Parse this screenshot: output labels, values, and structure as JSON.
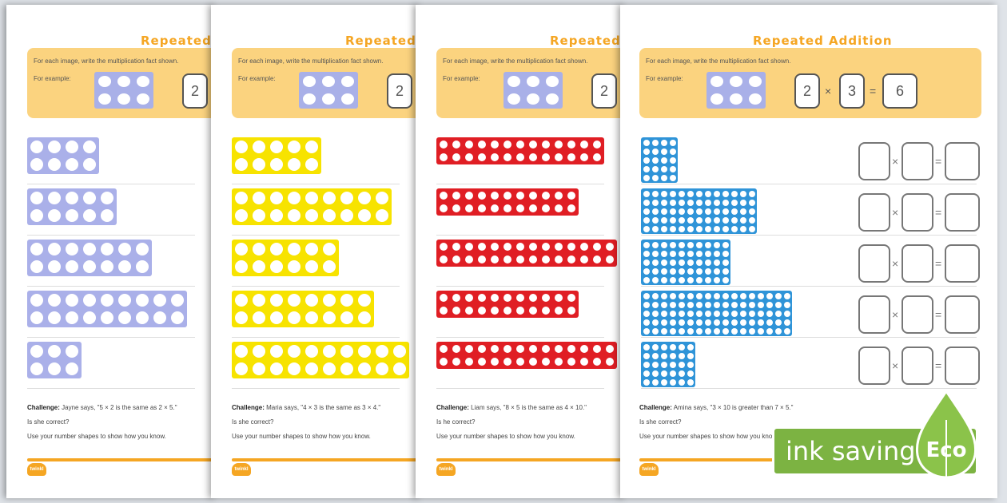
{
  "sheets": [
    {
      "title": "Repeated A",
      "instruction": "For each image, write the multiplication fact shown.",
      "example_label": "For example:",
      "example_values": [
        "2"
      ],
      "color": "#aab0e9",
      "challenge_label": "Challenge:",
      "challenge_text": "Jayne says, \"5 × 2 is the same as 2 × 5.\"",
      "question": "Is she correct?",
      "prompt": "Use your number shapes to show how you know."
    },
    {
      "title": "Repeated A",
      "instruction": "For each image, write the multiplication fact shown.",
      "example_label": "For example:",
      "example_values": [
        "2"
      ],
      "color": "#f7e300",
      "challenge_label": "Challenge:",
      "challenge_text": "Maria says, \"4 × 3 is the same as 3 × 4.\"",
      "question": "Is she correct?",
      "prompt": "Use your number shapes to show how you know."
    },
    {
      "title": "Repeated A",
      "instruction": "For each image, write the multiplication fact shown.",
      "example_label": "For example:",
      "example_values": [
        "2"
      ],
      "color": "#e01e24",
      "challenge_label": "Challenge:",
      "challenge_text": "Liam says, \"8 × 5 is the same as 4 × 10.\"",
      "question": "Is he correct?",
      "prompt": "Use your number shapes to show how you know."
    },
    {
      "title": "Repeated Addition",
      "instruction": "For each image, write the multiplication fact shown.",
      "example_label": "For example:",
      "example_values": [
        "2",
        "3",
        "6"
      ],
      "color": "#2f94d8",
      "challenge_label": "Challenge:",
      "challenge_text": "Amina says, \"3 × 10 is greater than 7 × 5.\"",
      "question": "Is she correct?",
      "prompt": "Use your number shapes to show how you know."
    }
  ],
  "logo_text": "twinkl",
  "eco": {
    "label": "ink saving",
    "badge": "Eco",
    "color": "#7cb342",
    "icon": "leaf-icon"
  },
  "symbols": {
    "times": "×",
    "equals": "="
  }
}
